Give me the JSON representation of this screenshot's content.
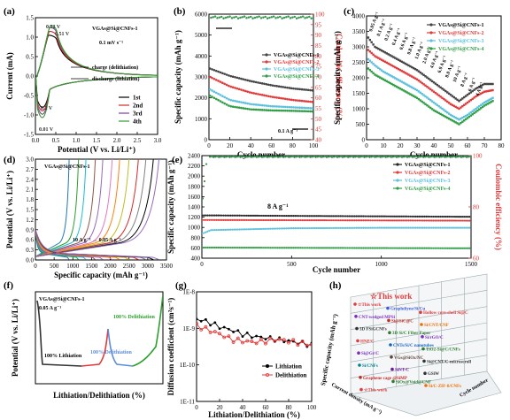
{
  "chart_data": [
    {
      "panel": "(a)",
      "type": "line",
      "xlabel": "Potential (V vs. Li/Li⁺)",
      "ylabel": "Current (mA)",
      "xlim": [
        0,
        3.0
      ],
      "ylim": [
        -1.5,
        1.5
      ],
      "xticks": [
        "0.0",
        "0.5",
        "1.0",
        "1.5",
        "2.0",
        "2.5",
        "3.0"
      ],
      "yticks": [
        "-1.5",
        "-1.0",
        "-0.5",
        "0.0",
        "0.5",
        "1.0",
        "1.5"
      ],
      "legend_title": "VGAs@Si@CNFs-1",
      "scan_rate": "0.1 mV s⁻¹",
      "annotations": [
        "0.32 V",
        "0.51 V",
        "0.2 V",
        "0.01 V",
        "charge (delithiation)",
        "discharge (lithiation)"
      ],
      "series": [
        {
          "name": "1st",
          "color": "#000000",
          "anodic_peak": [
            0.33,
            1.05
          ],
          "cathodic_peak": [
            0.15,
            -0.9
          ]
        },
        {
          "name": "2nd",
          "color": "#d62728",
          "anodic_peak": [
            0.35,
            1.15
          ],
          "cathodic_peak": [
            0.2,
            -1.0
          ]
        },
        {
          "name": "3rd",
          "color": "#7f3f98",
          "anodic_peak": [
            0.36,
            1.25
          ],
          "cathodic_peak": [
            0.2,
            -1.1
          ]
        },
        {
          "name": "4th",
          "color": "#2ca02c",
          "anodic_peak": [
            0.37,
            1.3
          ],
          "cathodic_peak": [
            0.2,
            -1.2
          ]
        }
      ]
    },
    {
      "panel": "(b)",
      "type": "scatter",
      "xlabel": "Cycle number",
      "ylabel": "Specific capacity (mAh g⁻¹)",
      "y2label": "Coulombic efficiency (%)",
      "xlim": [
        0,
        100
      ],
      "ylim": [
        0,
        6000
      ],
      "y2lim": [
        40,
        100
      ],
      "xticks": [
        "0",
        "20",
        "40",
        "60",
        "80",
        "100"
      ],
      "yticks": [
        "0",
        "1000",
        "2000",
        "3000",
        "4000",
        "5000",
        "6000"
      ],
      "y2ticks": [
        "40",
        "45",
        "50",
        "55",
        "60",
        "65",
        "70",
        "75",
        "80",
        "85",
        "90",
        "95",
        "100"
      ],
      "annotation": "0.1 A g⁻¹",
      "series": [
        {
          "name": "VGAs@Si@CNFs-1",
          "color": "#444444",
          "x": [
            1,
            20,
            40,
            60,
            80,
            100
          ],
          "y": [
            3400,
            3050,
            2800,
            2600,
            2450,
            2350
          ]
        },
        {
          "name": "VGAs@Si@CNFs-2",
          "color": "#e03a3a",
          "x": [
            1,
            20,
            40,
            60,
            80,
            100
          ],
          "y": [
            3000,
            2550,
            2250,
            2050,
            1900,
            1800
          ]
        },
        {
          "name": "VGAs@Si@CNFs-3",
          "color": "#5bc0de",
          "x": [
            1,
            20,
            40,
            60,
            80,
            100
          ],
          "y": [
            2400,
            1900,
            1700,
            1600,
            1550,
            1500
          ]
        },
        {
          "name": "VGAs@Si@CNFs-4",
          "color": "#2e9e44",
          "x": [
            1,
            20,
            40,
            60,
            80,
            100
          ],
          "y": [
            2100,
            1600,
            1450,
            1400,
            1380,
            1350
          ]
        }
      ]
    },
    {
      "panel": "(c)",
      "type": "scatter",
      "xlabel": "Cycle number",
      "ylabel": "Specific capacity (mAh g⁻¹)",
      "xlim": [
        0,
        80
      ],
      "ylim": [
        0,
        4000
      ],
      "xticks": [
        "0",
        "10",
        "20",
        "30",
        "40",
        "50",
        "60",
        "70",
        "80"
      ],
      "yticks": [
        "0",
        "500",
        "1000",
        "1500",
        "2000",
        "2500",
        "3000",
        "3500",
        "4000"
      ],
      "rate_labels": [
        "0.05 A g⁻¹",
        "0.1 A g⁻¹",
        "0.2 A g⁻¹",
        "0.4 A g⁻¹",
        "0.6 A g⁻¹",
        "0.8 A g⁻¹",
        "1.0 A g⁻¹",
        "2.0 A g⁻¹",
        "4.0 A g⁻¹",
        "6.0 A g⁻¹",
        "8.0 A g⁻¹",
        "10 A g⁻¹",
        "8 A g⁻¹",
        "6 A g⁻¹",
        "4 A g⁻¹"
      ],
      "series": [
        {
          "name": "VGAs@Si@CNFs-1",
          "color": "#444444",
          "x": [
            1,
            5,
            10,
            15,
            20,
            25,
            30,
            35,
            40,
            45,
            50,
            55,
            60,
            65,
            70,
            75
          ],
          "y": [
            3300,
            3000,
            2850,
            2700,
            2550,
            2400,
            2250,
            2050,
            1850,
            1650,
            1450,
            1250,
            1450,
            1650,
            1800,
            1800
          ]
        },
        {
          "name": "VGAs@Si@CNFs-2",
          "color": "#e03a3a",
          "x": [
            1,
            5,
            10,
            15,
            20,
            25,
            30,
            35,
            40,
            45,
            50,
            55,
            60,
            65,
            70,
            75
          ],
          "y": [
            2900,
            2700,
            2550,
            2400,
            2250,
            2100,
            1950,
            1750,
            1550,
            1350,
            1150,
            1000,
            1200,
            1400,
            1550,
            1600
          ]
        },
        {
          "name": "VGAs@Si@CNFs-3",
          "color": "#5bc0de",
          "x": [
            1,
            5,
            10,
            15,
            20,
            25,
            30,
            35,
            40,
            45,
            50,
            55,
            60,
            65,
            70,
            75
          ],
          "y": [
            2600,
            2400,
            2200,
            2050,
            1900,
            1750,
            1600,
            1400,
            1200,
            1000,
            800,
            650,
            800,
            1000,
            1200,
            1350
          ]
        },
        {
          "name": "VGAs@Si@CNFs-4",
          "color": "#2e9e44",
          "x": [
            1,
            5,
            10,
            15,
            20,
            25,
            30,
            35,
            40,
            45,
            50,
            55,
            60,
            65,
            70,
            75
          ],
          "y": [
            2300,
            2100,
            1950,
            1800,
            1650,
            1500,
            1350,
            1150,
            950,
            800,
            650,
            500,
            700,
            900,
            1100,
            1250
          ]
        }
      ]
    },
    {
      "panel": "(d)",
      "type": "line",
      "xlabel": "Specific capacity (mAh g⁻¹)",
      "ylabel": "Potential (V vs. Li/Li⁺)",
      "xlim": [
        0,
        3500
      ],
      "ylim": [
        0,
        3.0
      ],
      "xticks": [
        "0",
        "500",
        "1000",
        "1500",
        "2000",
        "2500",
        "3000",
        "3500"
      ],
      "yticks": [
        "0.0",
        "0.3",
        "0.6",
        "0.9",
        "1.2",
        "1.5",
        "1.8",
        "2.1",
        "2.4",
        "2.7",
        "3.0"
      ],
      "legend_title": "VGAs@Si@CNFs-1",
      "annotation": "10 A g⁻¹ → 0.05 A g⁻¹",
      "capacity_ends": [
        900,
        1150,
        1350,
        1600,
        1800,
        2050,
        2250,
        2500,
        2750,
        2950,
        3150,
        3300
      ],
      "colors": [
        "#1f77b4",
        "#2ca02c",
        "#17becf",
        "#8c564b",
        "#9467bd",
        "#e377c2",
        "#ff7f0e",
        "#bcbd22",
        "#d62728",
        "#7f7f7f",
        "#000000",
        "#9467bd"
      ]
    },
    {
      "panel": "(e)",
      "type": "scatter",
      "xlabel": "Cycle number",
      "ylabel": "Specific capacity (mAh g⁻¹)",
      "y2label": "Coulombic efficiency (%)",
      "xlim": [
        0,
        1500
      ],
      "ylim": [
        0,
        2400
      ],
      "y2lim": [
        40,
        100
      ],
      "xticks": [
        "0",
        "500",
        "1000",
        "1500"
      ],
      "yticks": [
        "400",
        "600",
        "800",
        "1000",
        "1200",
        "1400",
        "1600",
        "1800",
        "2000",
        "2200",
        "2400"
      ],
      "y2ticks": [
        "60",
        "80",
        "100"
      ],
      "annotation": "8 A g⁻¹",
      "series": [
        {
          "name": "VGAs@Si@CNFs-1",
          "color": "#222222",
          "x": [
            1,
            50,
            500,
            1000,
            1500
          ],
          "y": [
            1100,
            1100,
            1090,
            1080,
            1070
          ]
        },
        {
          "name": "VGAs@Si@CNFs-2",
          "color": "#e03a3a",
          "x": [
            1,
            50,
            500,
            1000,
            1500
          ],
          "y": [
            1000,
            1000,
            995,
            990,
            985
          ]
        },
        {
          "name": "VGAs@Si@CNFs-3",
          "color": "#5bc0de",
          "x": [
            1,
            50,
            500,
            1000,
            1500
          ],
          "y": [
            700,
            780,
            820,
            830,
            830
          ]
        },
        {
          "name": "VGAs@Si@CNFs-4",
          "color": "#2e9e44",
          "x": [
            1,
            50,
            500,
            1000,
            1500
          ],
          "y": [
            400,
            400,
            395,
            390,
            385
          ]
        }
      ]
    },
    {
      "panel": "(f)",
      "type": "line",
      "xlabel": "Lithiation/Delithiation (%)",
      "ylabel": "Potential (V vs. Li/Li⁺)",
      "legend_title": "VGAs@Si@CNFs-1",
      "rate": "0.05 A g⁻¹",
      "annotations": [
        "100% Delithiation",
        "100% Lithiation",
        "100% Delithiation"
      ],
      "colors": [
        "#333333",
        "#e03a3a",
        "#5b8ed6",
        "#2ca02c"
      ]
    },
    {
      "panel": "(g)",
      "type": "line",
      "xlabel": "Lithiation/Delithiation (%)",
      "ylabel": "Diffusion coefficient (cm²s⁻¹)",
      "xlim": [
        0,
        100
      ],
      "yscale": "log",
      "ylim": [
        1e-11,
        1e-08
      ],
      "xticks": [
        "0",
        "20",
        "40",
        "60",
        "80",
        "100"
      ],
      "yticks": [
        "1E-11",
        "1E-10",
        "1E-9",
        "1E-8"
      ],
      "series": [
        {
          "name": "Lithiation",
          "color": "#000000",
          "x": [
            0,
            10,
            20,
            30,
            40,
            50,
            60,
            70,
            80,
            90,
            100
          ],
          "y": [
            1.8e-09,
            1.5e-09,
            1.1e-09,
            9e-10,
            7e-10,
            6e-10,
            5.5e-10,
            5e-10,
            4.5e-10,
            4e-10,
            3.5e-10
          ]
        },
        {
          "name": "Delithiation",
          "color": "#e03a3a",
          "x": [
            0,
            10,
            20,
            30,
            40,
            50,
            60,
            70,
            80,
            90,
            100
          ],
          "y": [
            1.2e-09,
            9e-10,
            7e-10,
            5e-10,
            4.5e-10,
            4.2e-10,
            4.5e-10,
            5e-10,
            4.5e-10,
            4e-10,
            3.5e-10
          ]
        }
      ]
    },
    {
      "panel": "(h)",
      "type": "scatter",
      "xlabel": "Current density (mA g⁻¹)",
      "ylabel": "Specific capacity (mAh g⁻¹)",
      "zlabel": "Cycle number",
      "title_marker": "☆This work",
      "points": [
        {
          "label": "☆This work",
          "color": "#e03a3a"
        },
        {
          "label": "Graphdiyne/Si/Cu",
          "color": "#3b5bdb"
        },
        {
          "label": "Hollow core-shell Si@C",
          "color": "#e03a3a"
        },
        {
          "label": "CNT-wedged MPSi",
          "color": "#7b2cbf"
        },
        {
          "label": "Si@SiC@C",
          "color": "#c62828"
        },
        {
          "label": "Si/CNT/CNF",
          "color": "#ef6c00"
        },
        {
          "label": "3D FSiGCNFs",
          "color": "#333333"
        },
        {
          "label": "3D Si/C Fiber Paper",
          "color": "#2e7d32"
        },
        {
          "label": "Si/rGO/C",
          "color": "#7b2cbf"
        },
        {
          "label": "HNP/C",
          "color": "#e03a3a"
        },
        {
          "label": "CNTs/Si/C nanotubes",
          "color": "#1565c0"
        },
        {
          "label": "TiO2-Si@C/CNFs",
          "color": "#2e7d32"
        },
        {
          "label": "Si@Gr/C",
          "color": "#7b2cbf"
        },
        {
          "label": "VGs@SiOx/NC",
          "color": "#5d4037"
        },
        {
          "label": "Si@CNT/C-microscroll",
          "color": "#333333"
        },
        {
          "label": "Si/CNFs",
          "color": "#00838f"
        },
        {
          "label": "SiNT/C",
          "color": "#6a1b9a"
        },
        {
          "label": "GSiW",
          "color": "#333333"
        },
        {
          "label": "Graphene cage @SiMP",
          "color": "#c62828"
        },
        {
          "label": "SiOx@Void@CNF",
          "color": "#2e7d32"
        },
        {
          "label": "Si/C-ZIF-8/CNFs",
          "color": "#ef6c00"
        },
        {
          "label": "☆This work",
          "color": "#e03a3a"
        }
      ]
    }
  ]
}
